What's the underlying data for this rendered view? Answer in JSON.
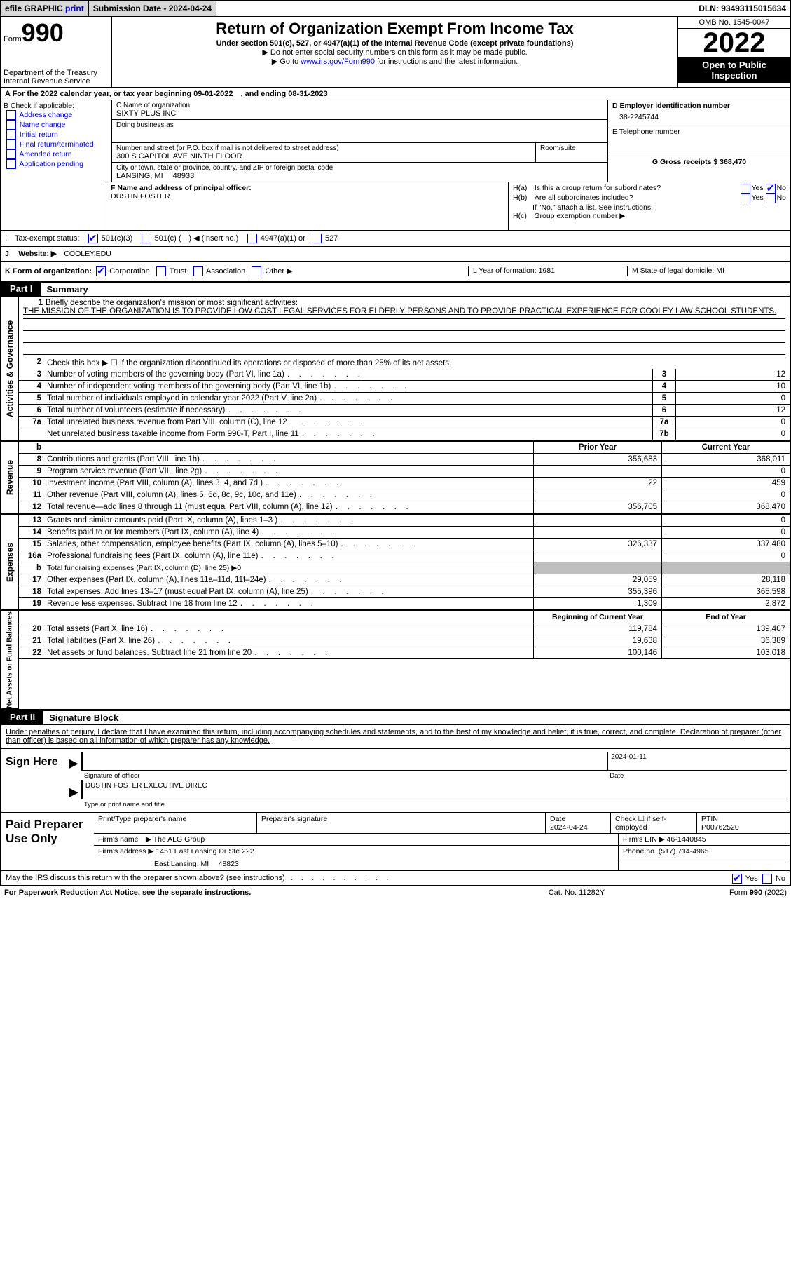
{
  "topbar": {
    "efile_label": "efile GRAPHIC",
    "print_label": "print",
    "sub_date_label": "Submission Date - 2024-04-24",
    "dln_label": "DLN: 93493115015634"
  },
  "header": {
    "form_label": "Form",
    "form_num": "990",
    "dept": "Department of the Treasury",
    "irs": "Internal Revenue Service",
    "title": "Return of Organization Exempt From Income Tax",
    "sub1": "Under section 501(c), 527, or 4947(a)(1) of the Internal Revenue Code (except private foundations)",
    "note1": "▶ Do not enter social security numbers on this form as it may be made public.",
    "note2_prefix": "▶ Go to ",
    "note2_link": "www.irs.gov/Form990",
    "note2_suffix": " for instructions and the latest information.",
    "omb": "OMB No. 1545-0047",
    "year": "2022",
    "otp": "Open to Public Inspection"
  },
  "line_a": "A For the 2022 calendar year, or tax year beginning 09-01-2022 , and ending 08-31-2023",
  "col_b": {
    "header": "B Check if applicable:",
    "addr": "Address change",
    "name": "Name change",
    "init": "Initial return",
    "final": "Final return/terminated",
    "amend": "Amended return",
    "app": "Application pending"
  },
  "col_c": {
    "c_label": "C Name of organization",
    "org_name": "SIXTY PLUS INC",
    "dba_label": "Doing business as",
    "addr_label": "Number and street (or P.O. box if mail is not delivered to street address)",
    "addr": "300 S CAPITOL AVE NINTH FLOOR",
    "suite_label": "Room/suite",
    "city_label": "City or town, state or province, country, and ZIP or foreign postal code",
    "city": "LANSING, MI  48933"
  },
  "col_d": {
    "d_label": "D Employer identification number",
    "ein": "38-2245744",
    "e_label": "E Telephone number",
    "g_label": "G Gross receipts $ 368,470"
  },
  "row_f": {
    "label": "F Name and address of principal officer:",
    "name": "DUSTIN FOSTER"
  },
  "row_h": {
    "ha": "H(a) Is this a group return for subordinates?",
    "hb": "H(b) Are all subordinates included?",
    "hb_note": "If \"No,\" attach a list. See instructions.",
    "hc": "H(c) Group exemption number ▶",
    "yes": "Yes",
    "no": "No"
  },
  "row_i": {
    "label": "I Tax-exempt status:",
    "o1": "501(c)(3)",
    "o2": "501(c) ( ) ◀ (insert no.)",
    "o3": "4947(a)(1) or",
    "o4": "527"
  },
  "row_j": {
    "label": "J  Website: ▶ ",
    "site": "COOLEY.EDU"
  },
  "row_k": {
    "label": "K Form of organization:",
    "corp": "Corporation",
    "trust": "Trust",
    "assoc": "Association",
    "other": "Other ▶",
    "l": "L Year of formation: 1981",
    "m": "M State of legal domicile: MI"
  },
  "parts": {
    "p1_tab": "Part I",
    "p1_title": "Summary",
    "p2_tab": "Part II",
    "p2_title": "Signature Block"
  },
  "vtabs": {
    "act": "Activities & Governance",
    "rev": "Revenue",
    "exp": "Expenses",
    "net": "Net Assets or Fund Balances"
  },
  "summary": {
    "q1_label": "Briefly describe the organization's mission or most significant activities:",
    "q1_text": "THE MISSION OF THE ORGANIZATION IS TO PROVIDE LOW COST LEGAL SERVICES FOR ELDERLY PERSONS AND TO PROVIDE PRACTICAL EXPERIENCE FOR COOLEY LAW SCHOOL STUDENTS.",
    "q2": "Check this box ▶ ☐ if the organization discontinued its operations or disposed of more than 25% of its net assets.",
    "rows_ag": [
      {
        "n": "3",
        "d": "Number of voting members of the governing body (Part VI, line 1a)",
        "cell": "3",
        "v": "12"
      },
      {
        "n": "4",
        "d": "Number of independent voting members of the governing body (Part VI, line 1b)",
        "cell": "4",
        "v": "10"
      },
      {
        "n": "5",
        "d": "Total number of individuals employed in calendar year 2022 (Part V, line 2a)",
        "cell": "5",
        "v": "0"
      },
      {
        "n": "6",
        "d": "Total number of volunteers (estimate if necessary)",
        "cell": "6",
        "v": "12"
      },
      {
        "n": "7a",
        "d": "Total unrelated business revenue from Part VIII, column (C), line 12",
        "cell": "7a",
        "v": "0"
      },
      {
        "n": "",
        "d": "Net unrelated business taxable income from Form 990-T, Part I, line 11",
        "cell": "7b",
        "v": "0"
      }
    ],
    "col_prior": "Prior Year",
    "col_current": "Current Year",
    "rows_rev": [
      {
        "n": "8",
        "d": "Contributions and grants (Part VIII, line 1h)",
        "c1": "356,683",
        "c2": "368,011"
      },
      {
        "n": "9",
        "d": "Program service revenue (Part VIII, line 2g)",
        "c1": "",
        "c2": "0"
      },
      {
        "n": "10",
        "d": "Investment income (Part VIII, column (A), lines 3, 4, and 7d )",
        "c1": "22",
        "c2": "459"
      },
      {
        "n": "11",
        "d": "Other revenue (Part VIII, column (A), lines 5, 6d, 8c, 9c, 10c, and 11e)",
        "c1": "",
        "c2": "0"
      },
      {
        "n": "12",
        "d": "Total revenue—add lines 8 through 11 (must equal Part VIII, column (A), line 12)",
        "c1": "356,705",
        "c2": "368,470"
      }
    ],
    "rows_exp": [
      {
        "n": "13",
        "d": "Grants and similar amounts paid (Part IX, column (A), lines 1–3 )",
        "c1": "",
        "c2": "0"
      },
      {
        "n": "14",
        "d": "Benefits paid to or for members (Part IX, column (A), line 4)",
        "c1": "",
        "c2": "0"
      },
      {
        "n": "15",
        "d": "Salaries, other compensation, employee benefits (Part IX, column (A), lines 5–10)",
        "c1": "326,337",
        "c2": "337,480"
      },
      {
        "n": "16a",
        "d": "Professional fundraising fees (Part IX, column (A), line 11e)",
        "c1": "",
        "c2": "0"
      },
      {
        "n": "b",
        "d": "Total fundraising expenses (Part IX, column (D), line 25) ▶0",
        "gray": true
      },
      {
        "n": "17",
        "d": "Other expenses (Part IX, column (A), lines 11a–11d, 11f–24e)",
        "c1": "29,059",
        "c2": "28,118"
      },
      {
        "n": "18",
        "d": "Total expenses. Add lines 13–17 (must equal Part IX, column (A), line 25)",
        "c1": "355,396",
        "c2": "365,598"
      },
      {
        "n": "19",
        "d": "Revenue less expenses. Subtract line 18 from line 12",
        "c1": "1,309",
        "c2": "2,872"
      }
    ],
    "col_begin": "Beginning of Current Year",
    "col_end": "End of Year",
    "rows_net": [
      {
        "n": "20",
        "d": "Total assets (Part X, line 16)",
        "c1": "119,784",
        "c2": "139,407"
      },
      {
        "n": "21",
        "d": "Total liabilities (Part X, line 26)",
        "c1": "19,638",
        "c2": "36,389"
      },
      {
        "n": "22",
        "d": "Net assets or fund balances. Subtract line 21 from line 20",
        "c1": "100,146",
        "c2": "103,018"
      }
    ]
  },
  "sig": {
    "text": "Under penalties of perjury, I declare that I have examined this return, including accompanying schedules and statements, and to the best of my knowledge and belief, it is true, correct, and complete. Declaration of preparer (other than officer) is based on all information of which preparer has any knowledge.",
    "sign_here": "Sign Here",
    "sig_officer": "Signature of officer",
    "date": "Date",
    "date_val": "2024-01-11",
    "name_val": "DUSTIN FOSTER  EXECUTIVE DIREC",
    "name_label": "Type or print name and title"
  },
  "paid": {
    "label": "Paid Preparer Use Only",
    "r1_name": "Print/Type preparer's name",
    "r1_sig": "Preparer's signature",
    "r1_date_label": "Date",
    "r1_date": "2024-04-24",
    "r1_check": "Check ☐ if self-employed",
    "r1_ptin_label": "PTIN",
    "r1_ptin": "P00762520",
    "firm_name_label": "Firm's name ▶ ",
    "firm_name": "The ALG Group",
    "firm_ein_label": "Firm's EIN ▶ ",
    "firm_ein": "46-1440845",
    "firm_addr_label": "Firm's address ▶ ",
    "firm_addr1": "1451 East Lansing Dr Ste 222",
    "firm_addr2": "East Lansing, MI  48823",
    "phone_label": "Phone no. ",
    "phone": "(517) 714-4965"
  },
  "footer": {
    "q": "May the IRS discuss this return with the preparer shown above? (see instructions)",
    "yes": "Yes",
    "no": "No",
    "paperwork": "For Paperwork Reduction Act Notice, see the separate instructions.",
    "cat": "Cat. No. 11282Y",
    "form": "Form 990 (2022)"
  }
}
